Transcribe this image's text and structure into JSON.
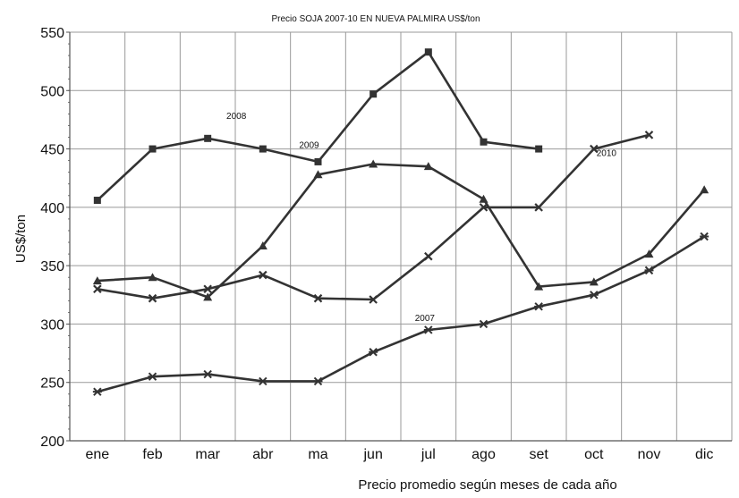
{
  "chart_data": {
    "type": "line",
    "title": "Precio SOJA 2007-10 EN NUEVA PALMIRA US$/ton",
    "xlabel": "Precio promedio según meses de cada año",
    "ylabel": "US$/ton",
    "categories": [
      "ene",
      "feb",
      "mar",
      "abr",
      "ma",
      "jun",
      "jul",
      "ago",
      "set",
      "oct",
      "nov",
      "dic"
    ],
    "ylim": [
      200,
      550
    ],
    "yticks": [
      200,
      250,
      300,
      350,
      400,
      450,
      500,
      550
    ],
    "grid": true,
    "legend": "none",
    "colors": {
      "line": "#333333",
      "grid": "#999999",
      "axis": "#555555"
    },
    "series": [
      {
        "name": "2007",
        "marker": "star",
        "values": [
          242,
          255,
          257,
          251,
          251,
          276,
          295,
          300,
          315,
          325,
          346,
          375
        ]
      },
      {
        "name": "2008",
        "marker": "square",
        "values": [
          406,
          450,
          459,
          450,
          439,
          497,
          533,
          456,
          450,
          null,
          null,
          null
        ]
      },
      {
        "name": "2009",
        "marker": "triangle",
        "values": [
          337,
          340,
          323,
          367,
          428,
          437,
          435,
          407,
          332,
          336,
          360,
          415
        ]
      },
      {
        "name": "2010",
        "marker": "x",
        "values": [
          330,
          322,
          330,
          342,
          322,
          321,
          358,
          400,
          400,
          450,
          462,
          null
        ]
      }
    ]
  }
}
